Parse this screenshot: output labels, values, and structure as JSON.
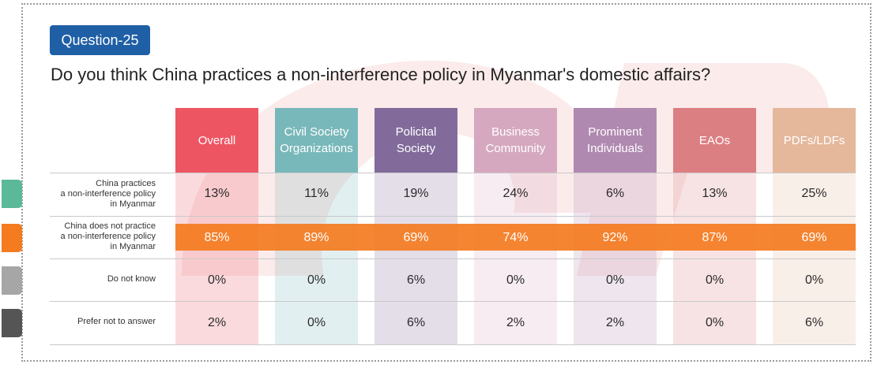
{
  "question_badge": "Question-25",
  "question_text": "Do you think China practices a non-interference policy in Myanmar's domestic affairs?",
  "colors": {
    "badge": "#1f5fa5",
    "highlight_row": "#f47b20",
    "swatches": [
      "#5bb99a",
      "#f47b20",
      "#a6a6a6",
      "#555555"
    ]
  },
  "chart_data": {
    "type": "table",
    "columns": [
      {
        "label": "Overall",
        "color": "#ee5563"
      },
      {
        "label": "Civil Society Organizations",
        "color": "#79b8ba"
      },
      {
        "label": "Policital Society",
        "color": "#826b9b"
      },
      {
        "label": "Business Community",
        "color": "#d6a8c0"
      },
      {
        "label": "Prominent Individuals",
        "color": "#b089b0"
      },
      {
        "label": "EAOs",
        "color": "#dc7f83"
      },
      {
        "label": "PDFs/LDFs",
        "color": "#e5b89c"
      }
    ],
    "rows": [
      {
        "label": "China practices a non-interference policy in Myanmar",
        "values": [
          "13%",
          "11%",
          "19%",
          "24%",
          "6%",
          "13%",
          "25%"
        ]
      },
      {
        "label": "China does not practice a non-interference policy in Myanmar",
        "values": [
          "85%",
          "89%",
          "69%",
          "74%",
          "92%",
          "87%",
          "69%"
        ]
      },
      {
        "label": "Do not know",
        "values": [
          "0%",
          "0%",
          "6%",
          "0%",
          "0%",
          "0%",
          "0%"
        ]
      },
      {
        "label": "Prefer not to answer",
        "values": [
          "2%",
          "0%",
          "6%",
          "2%",
          "2%",
          "0%",
          "6%"
        ]
      }
    ]
  }
}
